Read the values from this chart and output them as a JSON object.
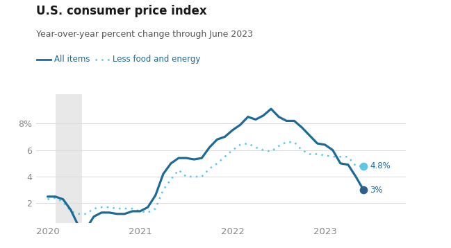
{
  "title": "U.S. consumer price index",
  "subtitle": "Year-over-year percent change through June 2023",
  "legend": [
    "All items",
    "Less food and energy"
  ],
  "ylabel_ticks": [
    "2",
    "4",
    "6",
    "8%"
  ],
  "yticks": [
    2,
    4,
    6,
    8
  ],
  "ylim": [
    0.5,
    10.2
  ],
  "line_color": "#1d6a96",
  "dotted_color": "#5bc8e8",
  "dot_all_color": "#2c5f8a",
  "dot_core_color": "#5bc8e8",
  "background_color": "#ffffff",
  "title_color": "#1a1a1a",
  "subtitle_color": "#555555",
  "tick_color": "#888888",
  "shade_color": "#e8e8e8",
  "grid_color": "#dddddd",
  "all_items": [
    2.5,
    2.5,
    2.3,
    1.5,
    0.3,
    0.1,
    1.0,
    1.3,
    1.3,
    1.2,
    1.2,
    1.4,
    1.4,
    1.7,
    2.6,
    4.2,
    5.0,
    5.4,
    5.4,
    5.3,
    5.4,
    6.2,
    6.8,
    7.0,
    7.5,
    7.9,
    8.5,
    8.3,
    8.6,
    9.1,
    8.5,
    8.2,
    8.2,
    7.7,
    7.1,
    6.5,
    6.4,
    6.0,
    5.0,
    4.9,
    4.0,
    3.0
  ],
  "less_food_energy": [
    2.3,
    2.4,
    2.1,
    1.4,
    1.2,
    1.2,
    1.6,
    1.7,
    1.7,
    1.6,
    1.6,
    1.6,
    1.4,
    1.3,
    1.6,
    3.0,
    3.8,
    4.5,
    4.0,
    4.0,
    4.0,
    4.6,
    5.0,
    5.5,
    6.0,
    6.4,
    6.5,
    6.2,
    6.0,
    5.9,
    6.3,
    6.6,
    6.6,
    6.0,
    5.7,
    5.7,
    5.6,
    5.5,
    5.5,
    5.5,
    4.8,
    4.8
  ],
  "n_points": 42,
  "shade_x0": 1,
  "shade_x1": 4.5,
  "xtick_positions": [
    0,
    12,
    24,
    36
  ],
  "xtick_labels": [
    "2020",
    "2021",
    "2022",
    "2023"
  ],
  "end_label_all": "3%",
  "end_label_core": "4.8%"
}
